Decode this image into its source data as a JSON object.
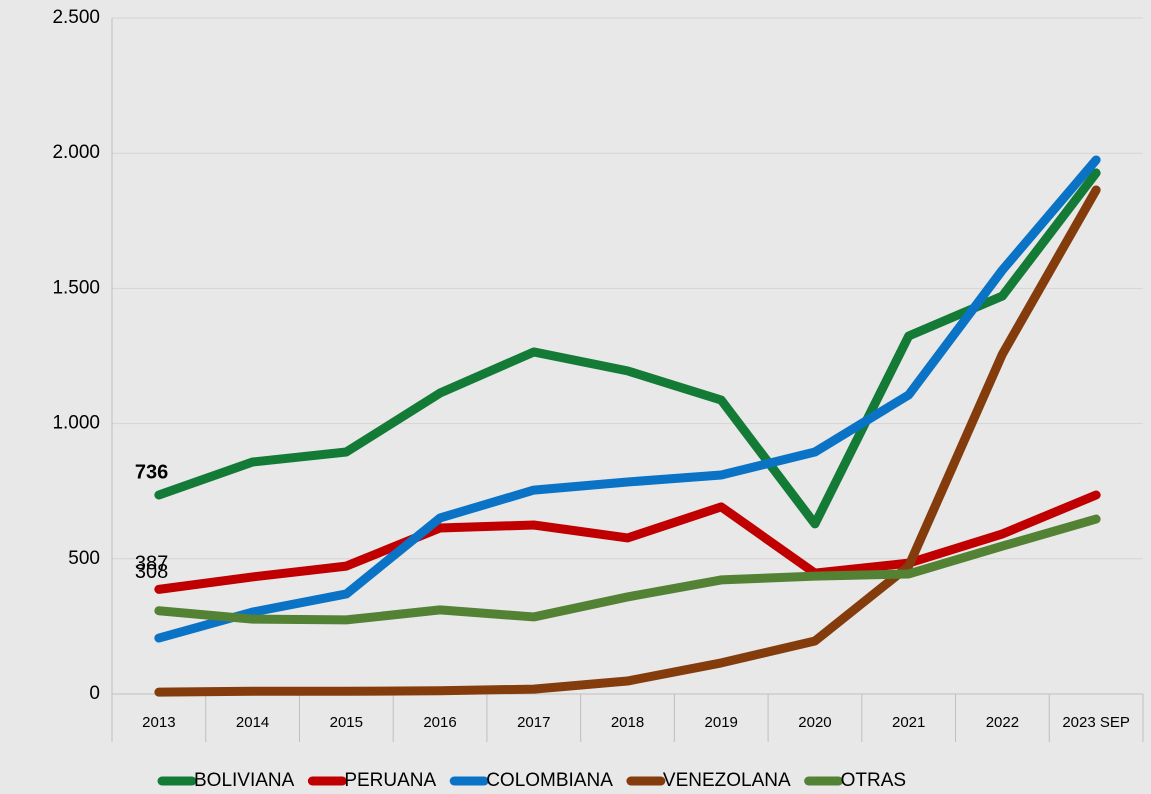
{
  "chart_data": {
    "type": "line",
    "categories": [
      "2013",
      "2014",
      "2015",
      "2016",
      "2017",
      "2018",
      "2019",
      "2020",
      "2021",
      "2022",
      "2023 SEP"
    ],
    "series": [
      {
        "name": "BOLIVIANA",
        "color": "#137b36",
        "values": [
          736,
          858,
          895,
          1113,
          1265,
          1195,
          1087,
          629,
          1324,
          1472,
          1927
        ]
      },
      {
        "name": "PERUANA",
        "color": "#c00000",
        "values": [
          387,
          433,
          473,
          614,
          625,
          577,
          692,
          447,
          484,
          592,
          736
        ]
      },
      {
        "name": "COLOMBIANA",
        "color": "#0b73c6",
        "values": [
          207,
          303,
          370,
          651,
          754,
          784,
          810,
          895,
          1106,
          1568,
          1975
        ]
      },
      {
        "name": "VENEZOLANA",
        "color": "#843c0c",
        "values": [
          7,
          10,
          10,
          12,
          18,
          48,
          115,
          196,
          473,
          1257,
          1864
        ]
      },
      {
        "name": "OTRAS",
        "color": "#548235",
        "values": [
          308,
          277,
          274,
          311,
          285,
          359,
          422,
          436,
          444,
          547,
          647
        ]
      }
    ],
    "ylim": [
      0,
      2500
    ],
    "yticks": [
      0,
      500,
      {
        "value": 1000,
        "label": "1.000"
      },
      {
        "value": 1500,
        "label": "1.500"
      },
      {
        "value": 2000,
        "label": "2.000"
      },
      {
        "value": 2500,
        "label": "2.500"
      }
    ],
    "grid": true,
    "legend": "bottom"
  }
}
